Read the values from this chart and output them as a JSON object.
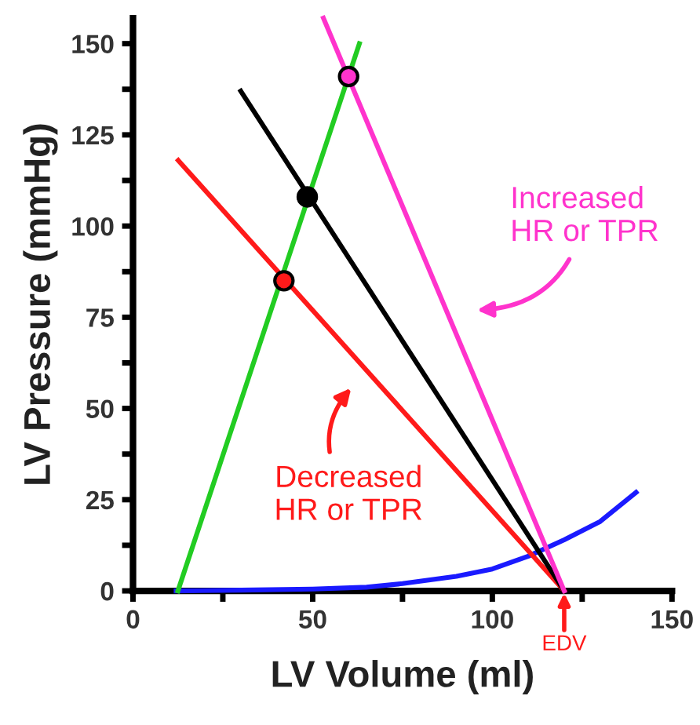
{
  "chart_data": {
    "type": "line",
    "xlabel": "LV Volume (ml)",
    "ylabel": "LV Pressure (mmHg)",
    "xlim": [
      0,
      150
    ],
    "ylim": [
      0,
      157
    ],
    "xticks": [
      0,
      {
        "value": 25,
        "label": null
      },
      50,
      {
        "value": 75,
        "label": null
      },
      100,
      {
        "value": 125,
        "label": null
      },
      150
    ],
    "yticks": [
      0,
      {
        "value": 12.5,
        "label": null
      },
      25,
      {
        "value": 37.5,
        "label": null
      },
      50,
      {
        "value": 62.5,
        "label": null
      },
      75,
      {
        "value": 87.5,
        "label": null
      },
      100,
      {
        "value": 112.5,
        "label": null
      },
      125,
      {
        "value": 137.5,
        "label": null
      },
      150
    ],
    "grid": false,
    "series": [
      {
        "color": "#1a1aff",
        "x": [
          12,
          30,
          50,
          65,
          75,
          90,
          100,
          110,
          120,
          130,
          140
        ],
        "values": [
          0,
          0.2,
          0.5,
          1,
          2,
          4,
          6,
          9.5,
          14,
          19,
          27
        ]
      },
      {
        "color": "#22cc22",
        "x": [
          12.5,
          63
        ],
        "values": [
          0,
          150
        ]
      },
      {
        "color": "#ff1a1a",
        "x": [
          12.6,
          120
        ],
        "values": [
          118,
          0
        ]
      },
      {
        "color": "#000000",
        "x": [
          30,
          120
        ],
        "values": [
          137,
          0
        ]
      },
      {
        "color": "#ff33cc",
        "x": [
          53,
          120
        ],
        "values": [
          157,
          0
        ]
      },
      {
        "type": "scatter",
        "color": "#ff1a1a",
        "marker": "circle",
        "x": [
          42
        ],
        "values": [
          85
        ]
      },
      {
        "type": "scatter",
        "color": "#000000",
        "marker": "circle",
        "x": [
          48.5
        ],
        "values": [
          108
        ]
      },
      {
        "type": "scatter",
        "color": "#ff33cc",
        "marker": "circle",
        "x": [
          60
        ],
        "values": [
          141
        ]
      }
    ],
    "annotations": [
      "Increased\nHR or TPR",
      "Decreased\nHR or TPR",
      {
        "text": "EDV",
        "x": 120,
        "y": 0
      }
    ]
  }
}
